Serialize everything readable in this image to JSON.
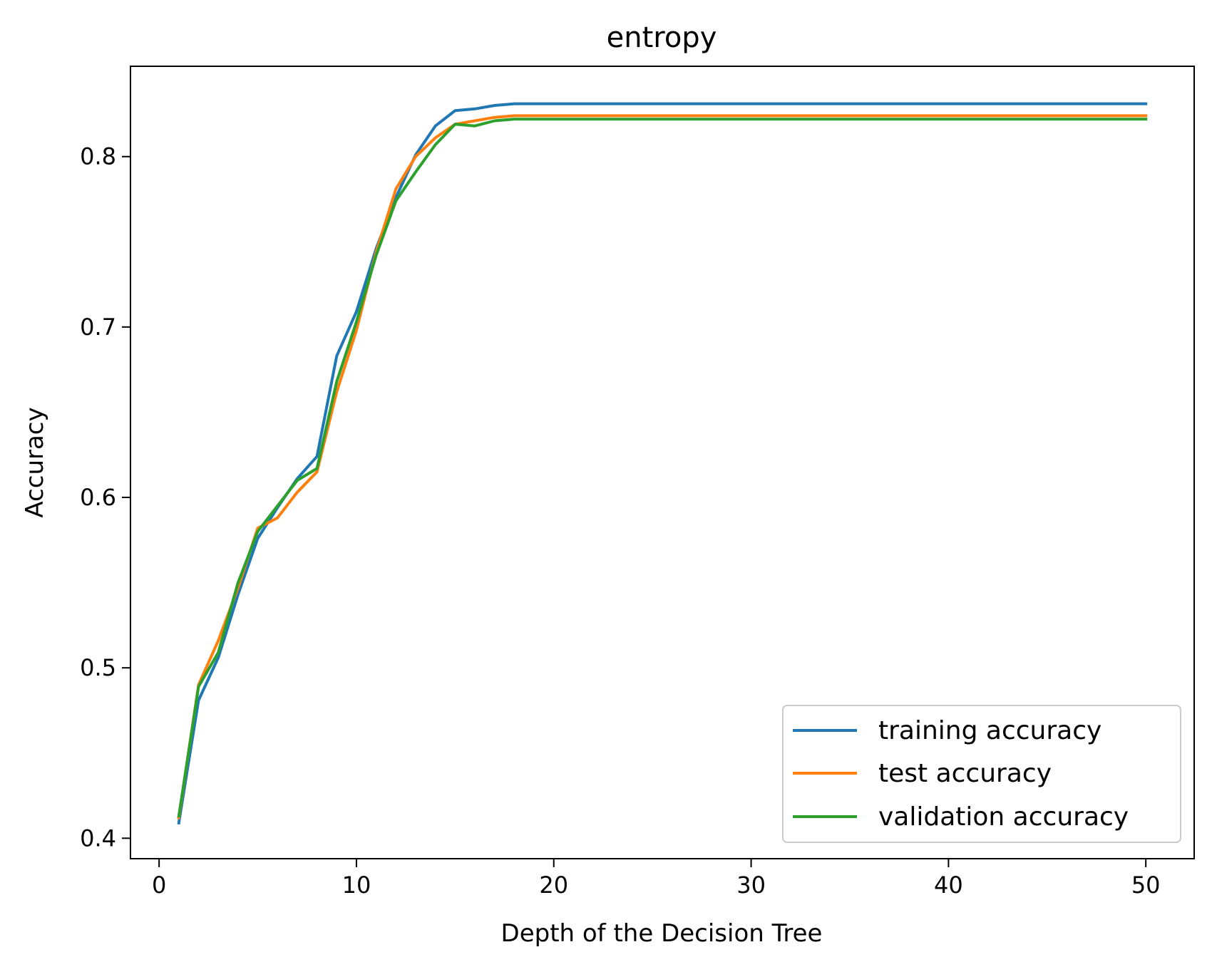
{
  "chart_data": {
    "type": "line",
    "title": "entropy",
    "xlabel": "Depth of the Decision Tree",
    "ylabel": "Accuracy",
    "xlim": [
      -1.45,
      52.45
    ],
    "ylim": [
      0.388,
      0.853
    ],
    "xticks": [
      0,
      10,
      20,
      30,
      40,
      50
    ],
    "xtick_labels": [
      "0",
      "10",
      "20",
      "30",
      "40",
      "50"
    ],
    "yticks": [
      0.4,
      0.5,
      0.6,
      0.7,
      0.8
    ],
    "ytick_labels": [
      "0.4",
      "0.5",
      "0.6",
      "0.7",
      "0.8"
    ],
    "grid": false,
    "legend_position": "lower right",
    "x": [
      1,
      2,
      3,
      4,
      5,
      6,
      7,
      8,
      9,
      10,
      11,
      12,
      13,
      14,
      15,
      16,
      17,
      18,
      19,
      20,
      21,
      22,
      23,
      24,
      25,
      26,
      27,
      28,
      29,
      30,
      31,
      32,
      33,
      34,
      35,
      36,
      37,
      38,
      39,
      40,
      41,
      42,
      43,
      44,
      45,
      46,
      47,
      48,
      49,
      50
    ],
    "series": [
      {
        "name": "training accuracy",
        "color": "#1f77b4",
        "values": [
          0.409,
          0.481,
          0.506,
          0.543,
          0.576,
          0.594,
          0.611,
          0.624,
          0.683,
          0.709,
          0.746,
          0.776,
          0.801,
          0.818,
          0.827,
          0.828,
          0.83,
          0.831,
          0.831,
          0.831,
          0.831,
          0.831,
          0.831,
          0.831,
          0.831,
          0.831,
          0.831,
          0.831,
          0.831,
          0.831,
          0.831,
          0.831,
          0.831,
          0.831,
          0.831,
          0.831,
          0.831,
          0.831,
          0.831,
          0.831,
          0.831,
          0.831,
          0.831,
          0.831,
          0.831,
          0.831,
          0.831,
          0.831,
          0.831,
          0.831
        ]
      },
      {
        "name": "test accuracy",
        "color": "#ff7f0e",
        "values": [
          0.412,
          0.49,
          0.516,
          0.547,
          0.582,
          0.588,
          0.603,
          0.615,
          0.662,
          0.698,
          0.744,
          0.781,
          0.8,
          0.811,
          0.819,
          0.821,
          0.823,
          0.824,
          0.824,
          0.824,
          0.824,
          0.824,
          0.824,
          0.824,
          0.824,
          0.824,
          0.824,
          0.824,
          0.824,
          0.824,
          0.824,
          0.824,
          0.824,
          0.824,
          0.824,
          0.824,
          0.824,
          0.824,
          0.824,
          0.824,
          0.824,
          0.824,
          0.824,
          0.824,
          0.824,
          0.824,
          0.824,
          0.824,
          0.824,
          0.824
        ]
      },
      {
        "name": "validation accuracy",
        "color": "#2ca02c",
        "values": [
          0.413,
          0.489,
          0.509,
          0.55,
          0.58,
          0.595,
          0.61,
          0.617,
          0.668,
          0.703,
          0.742,
          0.774,
          0.791,
          0.807,
          0.819,
          0.818,
          0.821,
          0.822,
          0.822,
          0.822,
          0.822,
          0.822,
          0.822,
          0.822,
          0.822,
          0.822,
          0.822,
          0.822,
          0.822,
          0.822,
          0.822,
          0.822,
          0.822,
          0.822,
          0.822,
          0.822,
          0.822,
          0.822,
          0.822,
          0.822,
          0.822,
          0.822,
          0.822,
          0.822,
          0.822,
          0.822,
          0.822,
          0.822,
          0.822,
          0.822
        ]
      }
    ]
  }
}
